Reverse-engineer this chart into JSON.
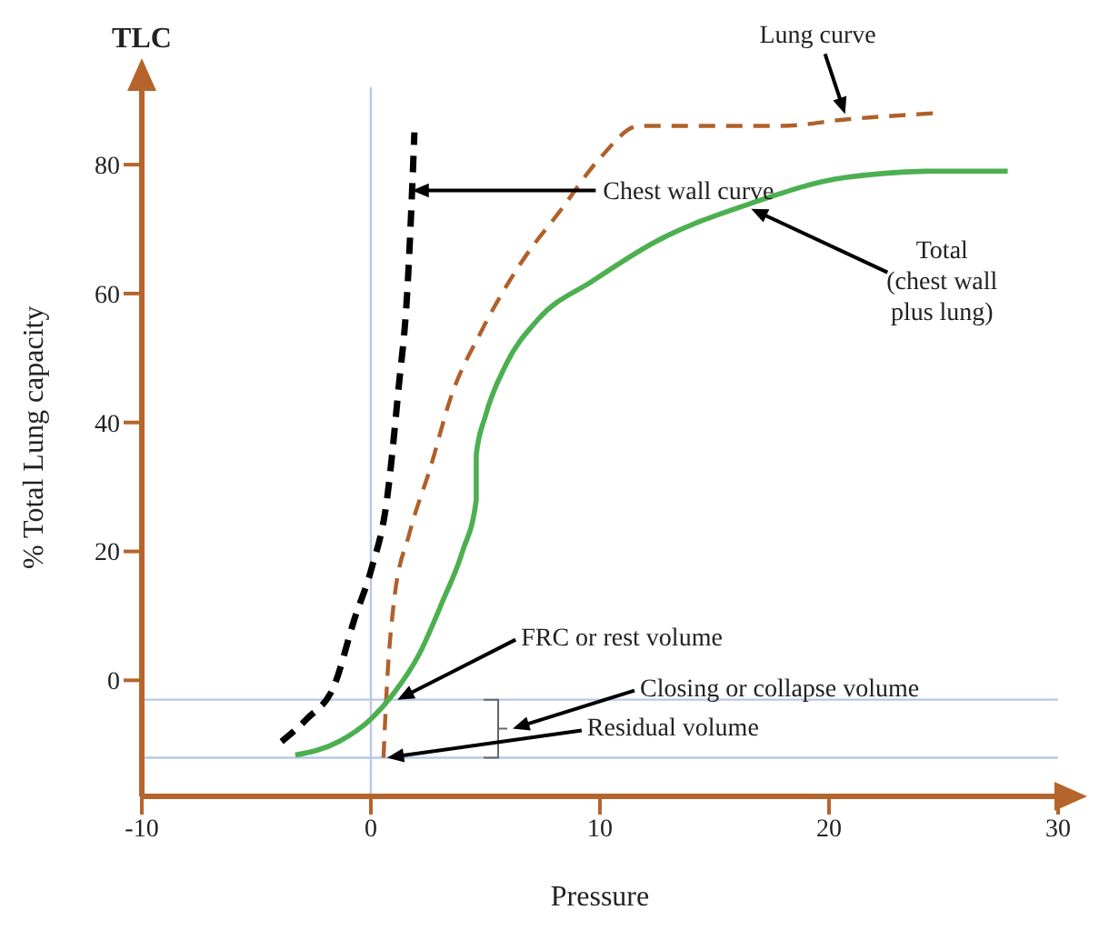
{
  "chart_data": {
    "type": "line",
    "xlabel": "Pressure",
    "ylabel": "% Total Lung capacity",
    "xlim": [
      -10,
      30
    ],
    "ylim": [
      -18,
      92
    ],
    "xticks": [
      -10,
      0,
      10,
      20,
      30
    ],
    "yticks": [
      0,
      20,
      40,
      60,
      80
    ],
    "grid": false,
    "legend": false,
    "marker": "none",
    "series": [
      {
        "color": "#000000",
        "line_style": "dashed",
        "x": [
          -3.9,
          -2.8,
          -1.6,
          -0.7,
          0,
          0.7,
          1.2,
          1.6,
          1.8,
          1.9
        ],
        "values": [
          -9.5,
          -6,
          -0.8,
          9.7,
          17,
          28,
          45,
          61,
          76,
          85
        ]
      },
      {
        "color": "#b0602a",
        "line_style": "dashed",
        "x": [
          0.55,
          0.7,
          1.0,
          1.7,
          2.6,
          3.5,
          4.8,
          6.6,
          8.3,
          10,
          11.7,
          13.8,
          17.9,
          20.7,
          24.7
        ],
        "values": [
          -12,
          -0.8,
          12,
          23,
          33,
          44,
          54,
          65,
          73,
          81,
          86,
          86,
          86,
          87,
          88
        ]
      },
      {
        "color": "#4caf50",
        "line_style": "solid",
        "x": [
          -3.3,
          -1.4,
          0,
          1.0,
          2.1,
          3.1,
          4.0,
          4.6,
          4.6,
          5.0,
          5.9,
          7.3,
          9.7,
          12.4,
          16.6,
          20.7,
          24.9,
          27.8
        ],
        "values": [
          -11.6,
          -9.5,
          -6,
          -2,
          4,
          12,
          20,
          28,
          35,
          41,
          49,
          56,
          62,
          68,
          74,
          78,
          79,
          79
        ]
      }
    ],
    "ref_lines": [
      {
        "axis": "y",
        "value": -3,
        "color": "#b8c8e8"
      },
      {
        "axis": "y",
        "value": -12,
        "color": "#b8c8e8"
      },
      {
        "axis": "x",
        "value": 0,
        "color": "#b8c8e8"
      }
    ],
    "annotations": [
      "TLC",
      "Closing or collapse volume",
      {
        "text": "Chest wall curve",
        "x": 1.8,
        "y": 76
      },
      {
        "text": "Lung curve",
        "x": 20.7,
        "y": 87
      },
      {
        "text": "Total\n(chest wall\nplus lung)",
        "x": 16.6,
        "y": 74
      },
      {
        "text": "FRC or rest volume",
        "x": 1,
        "y": -3
      },
      {
        "text": "Residual volume",
        "x": 0.55,
        "y": -12
      }
    ]
  }
}
